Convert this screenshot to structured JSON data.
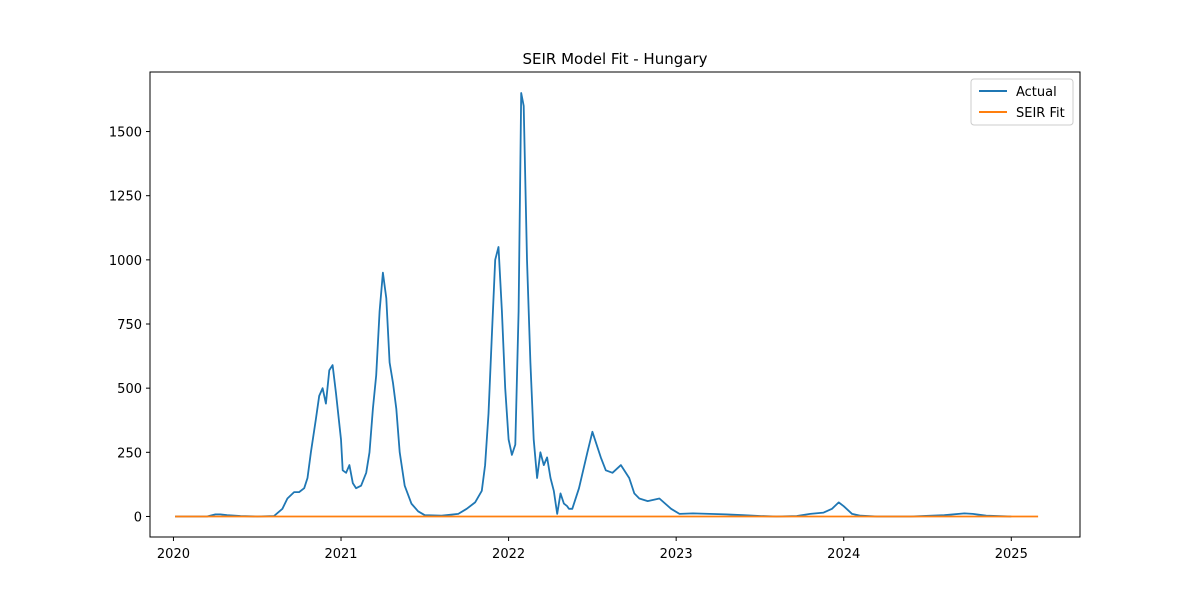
{
  "chart_data": {
    "type": "line",
    "title": "SEIR Model Fit - Hungary",
    "xlabel": "",
    "ylabel": "",
    "xlim": [
      2019.86,
      2025.41
    ],
    "ylim": [
      -80,
      1732
    ],
    "x_ticks": [
      {
        "value": 2020,
        "label": "2020"
      },
      {
        "value": 2021,
        "label": "2021"
      },
      {
        "value": 2022,
        "label": "2022"
      },
      {
        "value": 2023,
        "label": "2023"
      },
      {
        "value": 2024,
        "label": "2024"
      },
      {
        "value": 2025,
        "label": "2025"
      }
    ],
    "y_ticks": [
      {
        "value": 0,
        "label": "0"
      },
      {
        "value": 250,
        "label": "250"
      },
      {
        "value": 500,
        "label": "500"
      },
      {
        "value": 750,
        "label": "750"
      },
      {
        "value": 1000,
        "label": "1000"
      },
      {
        "value": 1250,
        "label": "1250"
      },
      {
        "value": 1500,
        "label": "1500"
      }
    ],
    "grid": false,
    "legend_position": "top-right",
    "series": [
      {
        "name": "Actual",
        "color": "#1f77b4",
        "x": [
          2020.01,
          2020.2,
          2020.25,
          2020.28,
          2020.32,
          2020.4,
          2020.5,
          2020.6,
          2020.65,
          2020.68,
          2020.72,
          2020.75,
          2020.78,
          2020.8,
          2020.82,
          2020.85,
          2020.87,
          2020.89,
          2020.91,
          2020.93,
          2020.95,
          2020.97,
          2021.0,
          2021.01,
          2021.03,
          2021.05,
          2021.07,
          2021.09,
          2021.12,
          2021.15,
          2021.17,
          2021.19,
          2021.21,
          2021.23,
          2021.25,
          2021.27,
          2021.29,
          2021.31,
          2021.33,
          2021.35,
          2021.38,
          2021.42,
          2021.46,
          2021.5,
          2021.6,
          2021.7,
          2021.75,
          2021.8,
          2021.84,
          2021.86,
          2021.88,
          2021.9,
          2021.92,
          2021.94,
          2021.96,
          2021.98,
          2022.0,
          2022.02,
          2022.04,
          2022.06,
          2022.075,
          2022.09,
          2022.11,
          2022.13,
          2022.15,
          2022.17,
          2022.19,
          2022.21,
          2022.23,
          2022.25,
          2022.27,
          2022.29,
          2022.31,
          2022.33,
          2022.35,
          2022.36,
          2022.38,
          2022.42,
          2022.47,
          2022.5,
          2022.55,
          2022.58,
          2022.62,
          2022.67,
          2022.72,
          2022.75,
          2022.78,
          2022.83,
          2022.9,
          2022.97,
          2023.02,
          2023.1,
          2023.2,
          2023.3,
          2023.4,
          2023.5,
          2023.6,
          2023.72,
          2023.8,
          2023.88,
          2023.93,
          2023.97,
          2024.0,
          2024.05,
          2024.1,
          2024.2,
          2024.4,
          2024.6,
          2024.72,
          2024.77,
          2024.85,
          2025.0
        ],
        "y": [
          0,
          0,
          8,
          8,
          5,
          2,
          0,
          2,
          30,
          70,
          95,
          95,
          110,
          150,
          250,
          380,
          470,
          500,
          440,
          570,
          590,
          480,
          300,
          180,
          170,
          200,
          130,
          110,
          120,
          170,
          250,
          420,
          550,
          800,
          950,
          850,
          600,
          520,
          420,
          250,
          120,
          50,
          20,
          5,
          3,
          10,
          30,
          55,
          100,
          200,
          400,
          700,
          1000,
          1050,
          800,
          500,
          300,
          240,
          280,
          800,
          1650,
          1600,
          1000,
          600,
          300,
          150,
          250,
          200,
          230,
          150,
          100,
          10,
          90,
          50,
          40,
          30,
          30,
          110,
          250,
          330,
          230,
          180,
          170,
          200,
          150,
          90,
          70,
          60,
          70,
          30,
          10,
          12,
          10,
          8,
          5,
          2,
          0,
          2,
          10,
          15,
          30,
          55,
          40,
          10,
          3,
          0,
          0,
          5,
          12,
          10,
          3,
          0
        ]
      },
      {
        "name": "SEIR Fit",
        "color": "#ff7f0e",
        "x": [
          2020.01,
          2025.16
        ],
        "y": [
          0,
          0
        ]
      }
    ]
  }
}
